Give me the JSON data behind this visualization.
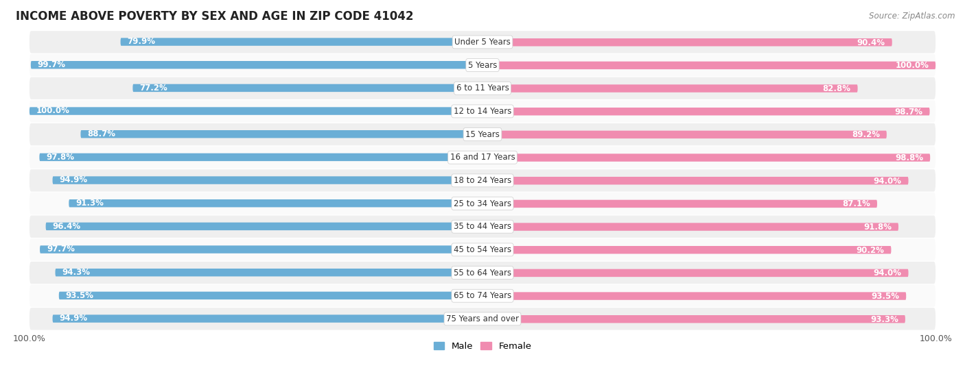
{
  "title": "INCOME ABOVE POVERTY BY SEX AND AGE IN ZIP CODE 41042",
  "source": "Source: ZipAtlas.com",
  "categories": [
    "Under 5 Years",
    "5 Years",
    "6 to 11 Years",
    "12 to 14 Years",
    "15 Years",
    "16 and 17 Years",
    "18 to 24 Years",
    "25 to 34 Years",
    "35 to 44 Years",
    "45 to 54 Years",
    "55 to 64 Years",
    "65 to 74 Years",
    "75 Years and over"
  ],
  "male_values": [
    79.9,
    99.7,
    77.2,
    100.0,
    88.7,
    97.8,
    94.9,
    91.3,
    96.4,
    97.7,
    94.3,
    93.5,
    94.9
  ],
  "female_values": [
    90.4,
    100.0,
    82.8,
    98.7,
    89.2,
    98.8,
    94.0,
    87.1,
    91.8,
    90.2,
    94.0,
    93.5,
    93.3
  ],
  "male_color_dark": "#6aaed6",
  "male_color_light": "#a8cce0",
  "female_color_dark": "#f08cb0",
  "female_color_light": "#f7bcd0",
  "background_color": "#ffffff",
  "row_bg_even": "#efefef",
  "row_bg_odd": "#fafafa",
  "title_fontsize": 12,
  "label_fontsize": 8.5,
  "value_fontsize": 8.5,
  "tick_fontsize": 9,
  "source_fontsize": 8.5,
  "legend_fontsize": 9.5
}
